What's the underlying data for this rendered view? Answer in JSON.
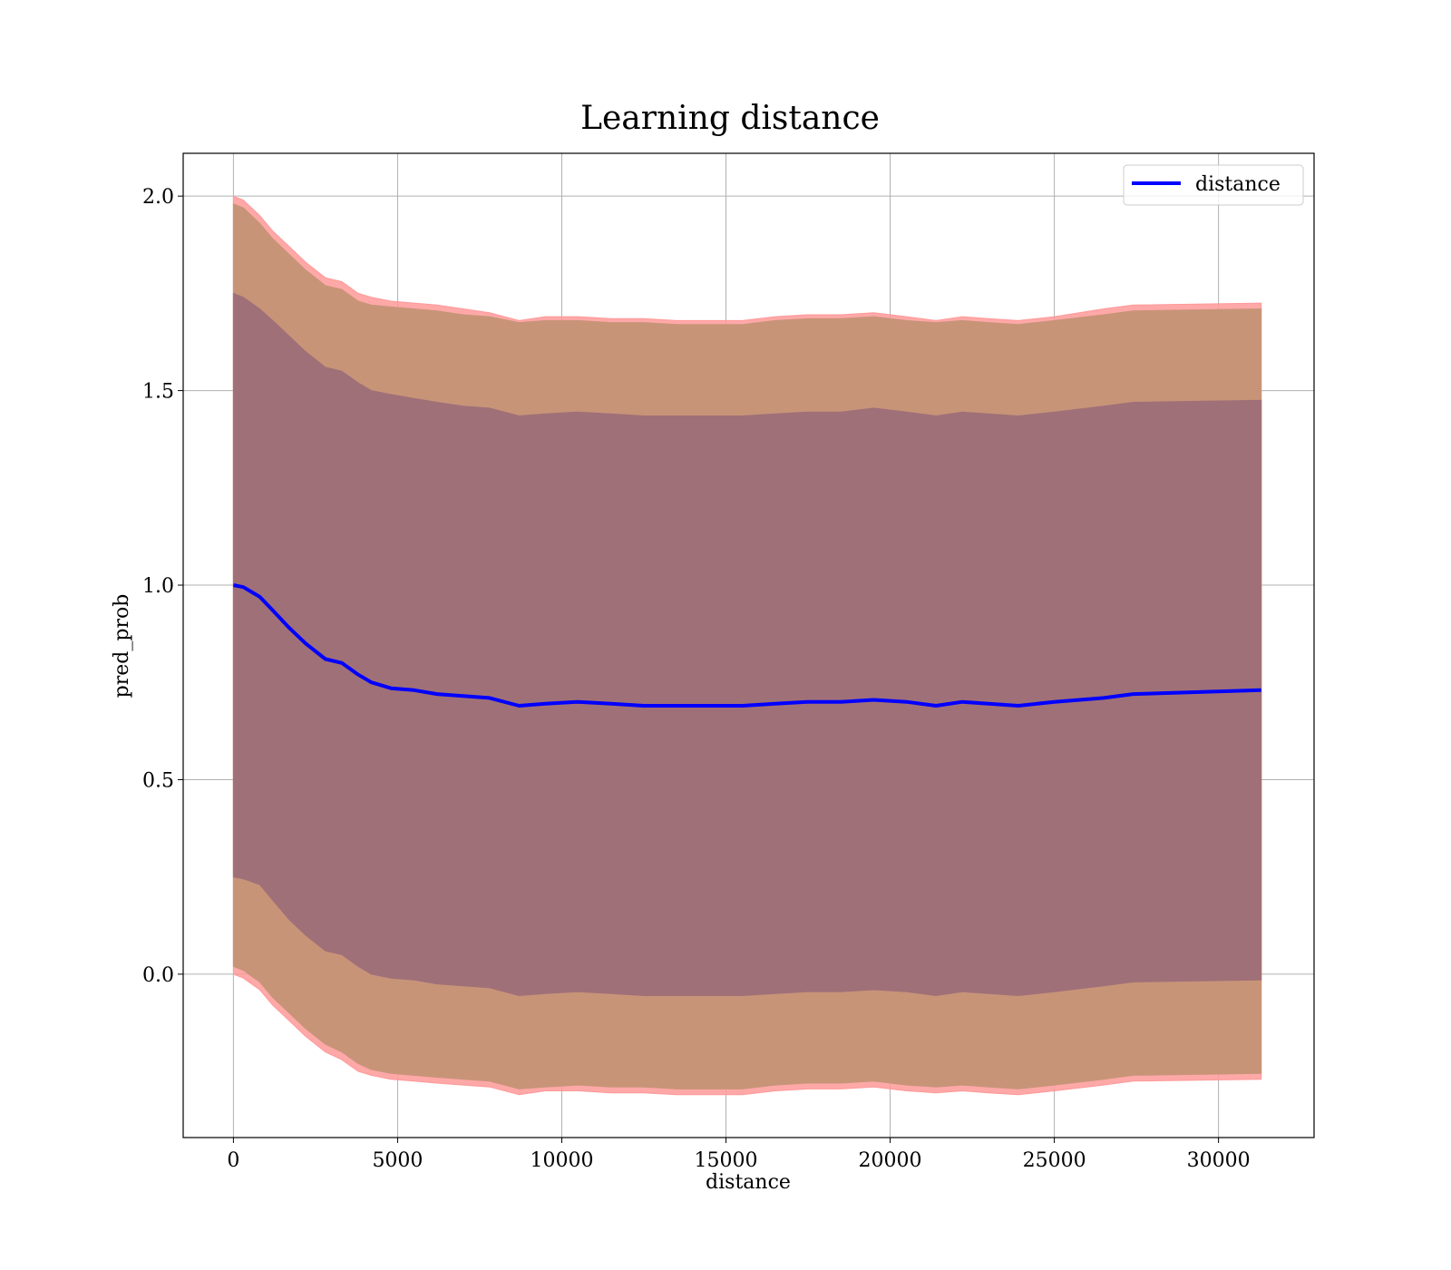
{
  "chart_data": {
    "type": "area",
    "title": "Learning distance",
    "xlabel": "distance",
    "ylabel": "pred_prob",
    "xlim": [
      -1530,
      32910
    ],
    "ylim": [
      -0.42,
      2.11
    ],
    "xticks": [
      0,
      5000,
      10000,
      15000,
      20000,
      25000,
      30000
    ],
    "xtick_labels": [
      "0",
      "5000",
      "10000",
      "15000",
      "20000",
      "25000",
      "30000"
    ],
    "yticks": [
      0.0,
      0.5,
      1.0,
      1.5,
      2.0
    ],
    "ytick_labels": [
      "0.0",
      "0.5",
      "1.0",
      "1.5",
      "2.0"
    ],
    "grid": true,
    "legend": {
      "position": "top-right",
      "entries": [
        "distance"
      ]
    },
    "colors": {
      "line": "#0000ff",
      "outer_band": "#ff9999",
      "mid_band": "#c89478",
      "inner_band": "#a07078",
      "grid": "#b0b0b0"
    },
    "x": [
      0,
      300,
      800,
      1200,
      1700,
      2200,
      2800,
      3300,
      3800,
      4200,
      4800,
      5500,
      6200,
      7000,
      7800,
      8700,
      9500,
      10500,
      11500,
      12500,
      13500,
      14500,
      15500,
      16500,
      17500,
      18500,
      19500,
      20500,
      21400,
      22200,
      23000,
      23900,
      25000,
      26500,
      27400,
      31300
    ],
    "series": [
      {
        "name": "distance",
        "values": [
          1.0,
          0.995,
          0.97,
          0.935,
          0.89,
          0.85,
          0.81,
          0.8,
          0.77,
          0.75,
          0.735,
          0.73,
          0.72,
          0.715,
          0.71,
          0.69,
          0.695,
          0.7,
          0.695,
          0.69,
          0.69,
          0.69,
          0.69,
          0.695,
          0.7,
          0.7,
          0.705,
          0.7,
          0.69,
          0.7,
          0.695,
          0.69,
          0.7,
          0.71,
          0.72,
          0.73
        ]
      }
    ],
    "bands": [
      {
        "role": "outer",
        "upper": [
          2.0,
          1.99,
          1.95,
          1.91,
          1.87,
          1.83,
          1.79,
          1.78,
          1.75,
          1.74,
          1.73,
          1.725,
          1.72,
          1.71,
          1.7,
          1.68,
          1.69,
          1.69,
          1.685,
          1.685,
          1.68,
          1.68,
          1.68,
          1.69,
          1.695,
          1.695,
          1.7,
          1.69,
          1.68,
          1.69,
          1.685,
          1.68,
          1.69,
          1.71,
          1.72,
          1.725
        ],
        "lower": [
          0.0,
          -0.01,
          -0.04,
          -0.08,
          -0.12,
          -0.16,
          -0.2,
          -0.22,
          -0.25,
          -0.26,
          -0.27,
          -0.275,
          -0.28,
          -0.285,
          -0.29,
          -0.31,
          -0.3,
          -0.3,
          -0.305,
          -0.305,
          -0.31,
          -0.31,
          -0.31,
          -0.3,
          -0.295,
          -0.295,
          -0.29,
          -0.3,
          -0.305,
          -0.3,
          -0.305,
          -0.31,
          -0.3,
          -0.285,
          -0.275,
          -0.27
        ]
      },
      {
        "role": "middle",
        "upper": [
          1.98,
          1.97,
          1.93,
          1.89,
          1.85,
          1.81,
          1.77,
          1.76,
          1.73,
          1.72,
          1.715,
          1.71,
          1.705,
          1.695,
          1.69,
          1.675,
          1.68,
          1.68,
          1.675,
          1.675,
          1.67,
          1.67,
          1.67,
          1.68,
          1.685,
          1.685,
          1.69,
          1.68,
          1.675,
          1.68,
          1.675,
          1.67,
          1.68,
          1.695,
          1.705,
          1.71
        ],
        "lower": [
          0.02,
          0.01,
          -0.02,
          -0.06,
          -0.1,
          -0.14,
          -0.18,
          -0.2,
          -0.23,
          -0.245,
          -0.255,
          -0.26,
          -0.265,
          -0.27,
          -0.275,
          -0.295,
          -0.29,
          -0.285,
          -0.29,
          -0.29,
          -0.295,
          -0.295,
          -0.295,
          -0.285,
          -0.28,
          -0.28,
          -0.275,
          -0.285,
          -0.29,
          -0.285,
          -0.29,
          -0.295,
          -0.285,
          -0.27,
          -0.26,
          -0.255
        ]
      },
      {
        "role": "inner",
        "upper": [
          1.75,
          1.74,
          1.71,
          1.68,
          1.64,
          1.6,
          1.56,
          1.55,
          1.52,
          1.5,
          1.49,
          1.48,
          1.47,
          1.46,
          1.455,
          1.435,
          1.44,
          1.445,
          1.44,
          1.435,
          1.435,
          1.435,
          1.435,
          1.44,
          1.445,
          1.445,
          1.455,
          1.445,
          1.435,
          1.445,
          1.44,
          1.435,
          1.445,
          1.46,
          1.47,
          1.475
        ],
        "lower": [
          0.25,
          0.245,
          0.23,
          0.19,
          0.14,
          0.1,
          0.06,
          0.05,
          0.02,
          0.0,
          -0.01,
          -0.015,
          -0.025,
          -0.03,
          -0.035,
          -0.055,
          -0.05,
          -0.045,
          -0.05,
          -0.055,
          -0.055,
          -0.055,
          -0.055,
          -0.05,
          -0.045,
          -0.045,
          -0.04,
          -0.045,
          -0.055,
          -0.045,
          -0.05,
          -0.055,
          -0.045,
          -0.03,
          -0.02,
          -0.015
        ]
      }
    ]
  }
}
